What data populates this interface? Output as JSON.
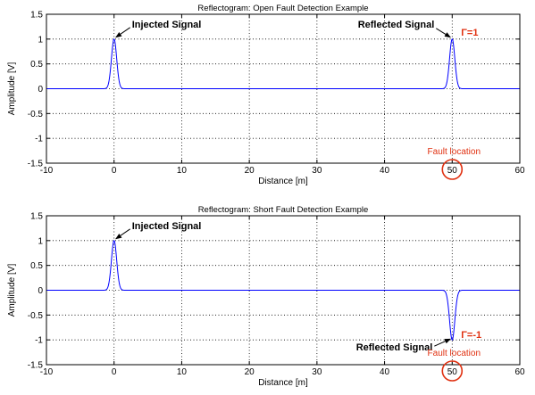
{
  "colors": {
    "signal": "#0000ff",
    "fault": "#e03010",
    "axis": "#000000",
    "grid": "#000000"
  },
  "chart_data": [
    {
      "type": "line",
      "title": "Reflectogram: Open Fault Detection Example",
      "xlabel": "Distance [m]",
      "ylabel": "Amplitude [V]",
      "xlim": [
        -10,
        60
      ],
      "ylim": [
        -1.5,
        1.5
      ],
      "xticks": [
        -10,
        0,
        10,
        20,
        30,
        40,
        50,
        60
      ],
      "yticks": [
        -1.5,
        -1,
        -0.5,
        0,
        0.5,
        1,
        1.5
      ],
      "grid": true,
      "series": [
        {
          "pulses": [
            {
              "center": 0,
              "amplitude": 1,
              "width": 0.55
            },
            {
              "center": 50,
              "amplitude": 1,
              "width": 0.55
            }
          ]
        }
      ],
      "annotations": {
        "injected": {
          "text": "Injected Signal",
          "x": 0,
          "y": 1
        },
        "reflected": {
          "text": "Reflected Signal",
          "x": 50,
          "y": 1
        },
        "gamma": {
          "text": "Γ=1",
          "x": 50,
          "y": 1
        },
        "fault_location": {
          "text": "Fault location",
          "x": 50
        }
      }
    },
    {
      "type": "line",
      "title": "Reflectogram: Short Fault Detection Example",
      "xlabel": "Distance [m]",
      "ylabel": "Amplitude [V]",
      "xlim": [
        -10,
        60
      ],
      "ylim": [
        -1.5,
        1.5
      ],
      "xticks": [
        -10,
        0,
        10,
        20,
        30,
        40,
        50,
        60
      ],
      "yticks": [
        -1.5,
        -1,
        -0.5,
        0,
        0.5,
        1,
        1.5
      ],
      "grid": true,
      "series": [
        {
          "pulses": [
            {
              "center": 0,
              "amplitude": 1,
              "width": 0.55
            },
            {
              "center": 50,
              "amplitude": -1,
              "width": 0.55
            }
          ]
        }
      ],
      "annotations": {
        "injected": {
          "text": "Injected Signal",
          "x": 0,
          "y": 1
        },
        "reflected": {
          "text": "Reflected Signal",
          "x": 50,
          "y": -1
        },
        "gamma": {
          "text": "Γ=-1",
          "x": 50,
          "y": -1
        },
        "fault_location": {
          "text": "Fault location",
          "x": 50
        }
      }
    }
  ]
}
